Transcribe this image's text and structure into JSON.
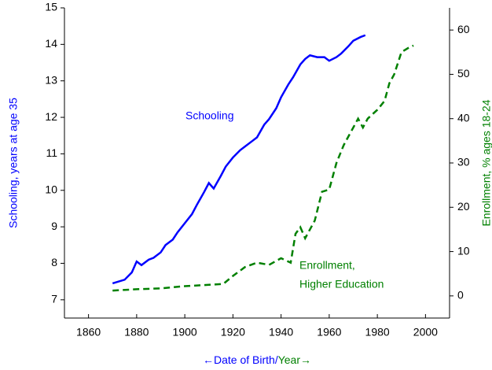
{
  "chart_data": {
    "type": "line",
    "annotations": [
      {
        "text": "Schooling",
        "color": "#0000ff"
      },
      {
        "text": "Enrollment,",
        "color": "#008000"
      },
      {
        "text": "Higher Education",
        "color": "#008000"
      }
    ],
    "ylabel": "Schooling, years at age 35",
    "y2label": "Enrollment, % ages 18-24",
    "xlabel": [
      {
        "text": "←Date of Birth/",
        "color": "#0000ff"
      },
      {
        "text": "Year→",
        "color": "#008000"
      }
    ],
    "xlim": [
      1850,
      2010
    ],
    "xticks": [
      1860,
      1880,
      1900,
      1920,
      1940,
      1960,
      1980,
      2000
    ],
    "ylim": [
      6.5,
      15
    ],
    "yticks": [
      7,
      8,
      9,
      10,
      11,
      12,
      13,
      14,
      15
    ],
    "y2lim": [
      -5,
      65
    ],
    "y2ticks": [
      0,
      10,
      20,
      30,
      40,
      50,
      60
    ],
    "series": [
      {
        "name": "Schooling",
        "color": "#0000ff",
        "dash": "none",
        "axis": "y",
        "x": [
          1870,
          1875,
          1878,
          1880,
          1882,
          1885,
          1887,
          1890,
          1892,
          1895,
          1897,
          1900,
          1903,
          1905,
          1908,
          1910,
          1912,
          1915,
          1917,
          1920,
          1923,
          1925,
          1928,
          1930,
          1933,
          1935,
          1938,
          1940,
          1943,
          1945,
          1948,
          1950,
          1952,
          1955,
          1958,
          1960,
          1963,
          1965,
          1968,
          1970,
          1973,
          1975
        ],
        "values": [
          7.45,
          7.55,
          7.75,
          8.05,
          7.95,
          8.1,
          8.15,
          8.3,
          8.5,
          8.65,
          8.85,
          9.1,
          9.35,
          9.6,
          9.95,
          10.2,
          10.05,
          10.4,
          10.65,
          10.9,
          11.1,
          11.2,
          11.35,
          11.45,
          11.8,
          11.95,
          12.25,
          12.55,
          12.9,
          13.1,
          13.45,
          13.6,
          13.7,
          13.65,
          13.65,
          13.55,
          13.65,
          13.75,
          13.95,
          14.1,
          14.2,
          14.25
        ]
      },
      {
        "name": "Enrollment, Higher Education",
        "color": "#008000",
        "dash": "8,5",
        "axis": "y2",
        "x": [
          1870,
          1880,
          1890,
          1900,
          1910,
          1916,
          1920,
          1925,
          1930,
          1935,
          1940,
          1944,
          1946,
          1948,
          1950,
          1954,
          1957,
          1960,
          1963,
          1966,
          1970,
          1972,
          1974,
          1976,
          1980,
          1983,
          1985,
          1987,
          1990,
          1993,
          1995
        ],
        "values": [
          1.2,
          1.5,
          1.7,
          2.2,
          2.5,
          2.7,
          4.5,
          6.5,
          7.5,
          7,
          8.5,
          7.5,
          14,
          15.5,
          13,
          17,
          23.5,
          24,
          30,
          34,
          38,
          40,
          38,
          40,
          42,
          44,
          48,
          50,
          55,
          56,
          56.5
        ]
      }
    ]
  }
}
